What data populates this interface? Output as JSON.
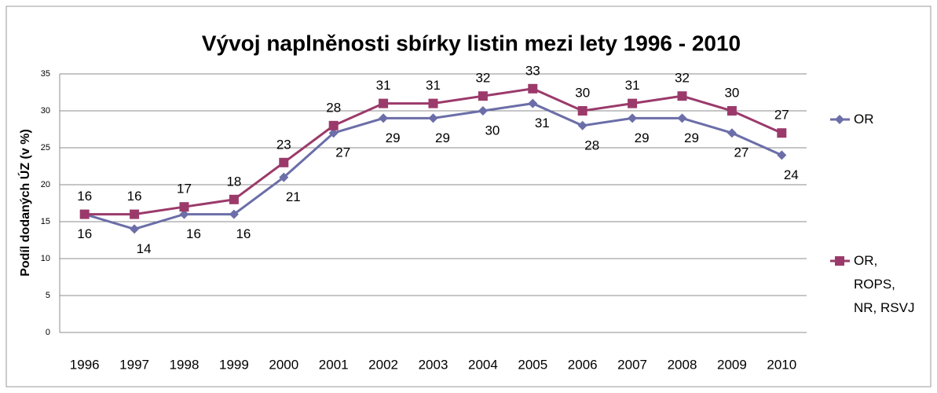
{
  "chart_data": {
    "type": "line",
    "title": "Vývoj naplněnosti sbírky listin mezi lety 1996 - 2010",
    "y_label": "Podíl dodaných ÚZ (v %)",
    "categories": [
      "1996",
      "1997",
      "1998",
      "1999",
      "2000",
      "2001",
      "2002",
      "2003",
      "2004",
      "2005",
      "2006",
      "2007",
      "2008",
      "2009",
      "2010"
    ],
    "series": [
      {
        "name": "OR",
        "color": "#6b6ea8",
        "marker": "diamond",
        "values": [
          16,
          14,
          16,
          16,
          21,
          27,
          29,
          29,
          30,
          31,
          28,
          29,
          29,
          27,
          24
        ]
      },
      {
        "name": "OR, ROPS, NR, RSVJ",
        "color": "#9b3a6a",
        "marker": "square",
        "values": [
          16,
          16,
          17,
          18,
          23,
          28,
          31,
          31,
          32,
          33,
          30,
          31,
          32,
          30,
          27
        ]
      }
    ],
    "ylim": [
      0,
      35
    ],
    "yticks": [
      0,
      5,
      10,
      15,
      20,
      25,
      30,
      35
    ],
    "grid": true,
    "legend": "right"
  }
}
